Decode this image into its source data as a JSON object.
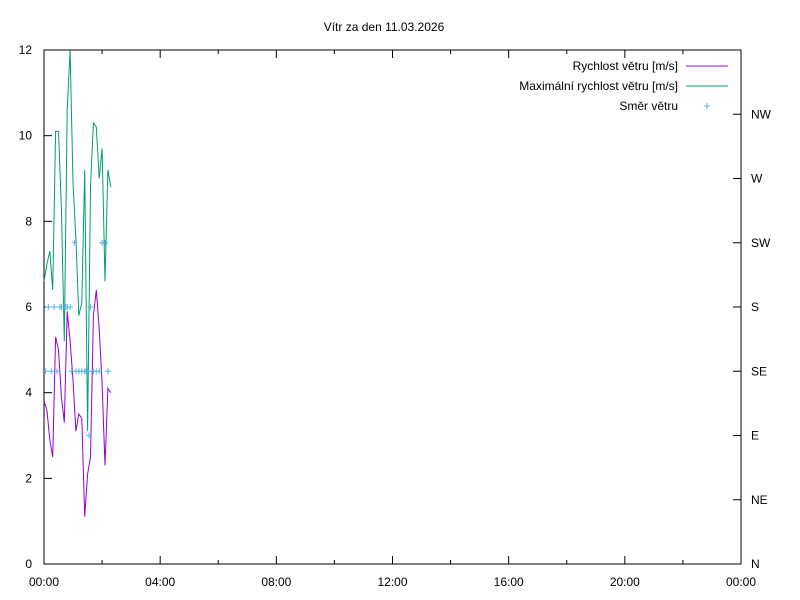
{
  "chart_data": {
    "type": "line",
    "title": "Vítr za den 11.03.2026",
    "x_ticks": [
      "00:00",
      "04:00",
      "08:00",
      "12:00",
      "16:00",
      "20:00",
      "00:00"
    ],
    "x_range_hours": [
      0,
      24
    ],
    "y_ticks": [
      "0",
      "2",
      "4",
      "6",
      "8",
      "10",
      "12"
    ],
    "ylim": [
      0,
      12
    ],
    "y2_ticks": [
      "N",
      "NE",
      "E",
      "SE",
      "S",
      "SW",
      "W",
      "NW"
    ],
    "legend_position": "top-right",
    "grid": false,
    "series": [
      {
        "name": "Rychlost větru [m/s]",
        "color": "#9400d3",
        "style": "line",
        "x": [
          0.0,
          0.1,
          0.2,
          0.3,
          0.4,
          0.5,
          0.6,
          0.7,
          0.8,
          0.9,
          1.0,
          1.1,
          1.2,
          1.3,
          1.4,
          1.5,
          1.6,
          1.7,
          1.8,
          1.9,
          2.0,
          2.1,
          2.2,
          2.3
        ],
        "y": [
          3.8,
          3.6,
          2.9,
          2.5,
          5.3,
          5.0,
          3.9,
          3.3,
          5.9,
          5.2,
          4.3,
          3.1,
          3.5,
          3.4,
          1.1,
          2.1,
          2.5,
          5.8,
          6.4,
          5.5,
          4.2,
          2.3,
          4.1,
          4.0
        ]
      },
      {
        "name": "Maximální rychlost větru [m/s]",
        "color": "#009e73",
        "style": "line",
        "x": [
          0.0,
          0.1,
          0.2,
          0.3,
          0.4,
          0.5,
          0.6,
          0.7,
          0.8,
          0.9,
          1.0,
          1.1,
          1.2,
          1.3,
          1.4,
          1.5,
          1.6,
          1.7,
          1.8,
          1.9,
          2.0,
          2.1,
          2.2,
          2.3
        ],
        "y": [
          6.6,
          7.0,
          7.3,
          6.4,
          10.1,
          10.1,
          8.3,
          5.2,
          10.6,
          12.0,
          8.9,
          7.6,
          5.8,
          6.1,
          9.2,
          3.1,
          8.8,
          10.3,
          10.2,
          9.0,
          9.7,
          6.6,
          9.2,
          8.8
        ]
      },
      {
        "name": "Směr větru",
        "color": "#56b4e9",
        "style": "points",
        "x": [
          0.05,
          0.15,
          0.25,
          0.35,
          0.45,
          0.55,
          0.6,
          0.7,
          0.75,
          0.8,
          0.9,
          0.95,
          1.05,
          1.1,
          1.2,
          1.3,
          1.4,
          1.45,
          1.5,
          1.55,
          1.6,
          1.7,
          1.8,
          1.9,
          2.0,
          2.1,
          2.2
        ],
        "y": [
          4.5,
          6.0,
          4.5,
          6.0,
          4.5,
          6.0,
          6.0,
          6.0,
          6.0,
          6.0,
          6.0,
          4.5,
          7.5,
          4.5,
          4.5,
          4.5,
          4.5,
          4.5,
          4.5,
          3.0,
          6.0,
          4.5,
          4.5,
          4.5,
          7.5,
          7.5,
          4.5
        ]
      }
    ]
  }
}
